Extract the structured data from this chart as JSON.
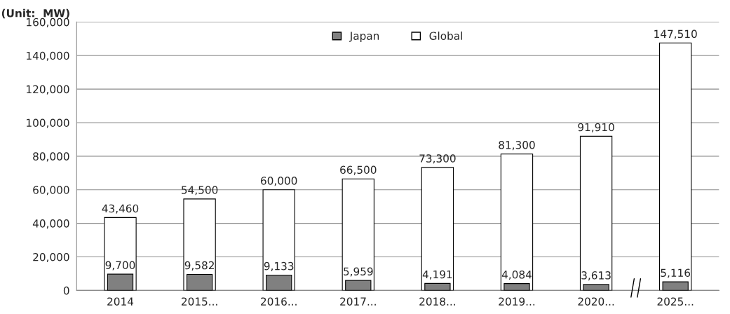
{
  "chart_data": {
    "type": "bar",
    "ylabel": "(Unit:  MW)",
    "categories": [
      "2014",
      "2015...",
      "2016...",
      "2017...",
      "2018...",
      "2019...",
      "2020...",
      "2025..."
    ],
    "series": [
      {
        "name": "Global",
        "color": "#ffffff",
        "values": [
          43460,
          54500,
          60000,
          66500,
          73300,
          81300,
          91910,
          147510
        ],
        "value_labels": [
          "43,460",
          "54,500",
          "60,000",
          "66,500",
          "73,300",
          "81,300",
          "91,910",
          "147,510"
        ]
      },
      {
        "name": "Japan",
        "color": "#808080",
        "values": [
          9700,
          9582,
          9133,
          5959,
          4191,
          4084,
          3613,
          5116
        ],
        "value_labels": [
          "9,700",
          "9,582",
          "9,133",
          "5,959",
          "4,191",
          "4,084",
          "3,613",
          "5,116"
        ]
      }
    ],
    "ylim": [
      0,
      160000
    ],
    "yticks": [
      {
        "value": 0,
        "label": "0"
      },
      {
        "value": 20000,
        "label": "20,000"
      },
      {
        "value": 40000,
        "label": "40,000"
      },
      {
        "value": 60000,
        "label": "60,000"
      },
      {
        "value": 80000,
        "label": "80,000"
      },
      {
        "value": 100000,
        "label": "100,000"
      },
      {
        "value": 120000,
        "label": "120,000"
      },
      {
        "value": 140000,
        "label": "140,000"
      },
      {
        "value": 160000,
        "label": "160,000"
      }
    ],
    "grid": "y",
    "legend": "top"
  }
}
